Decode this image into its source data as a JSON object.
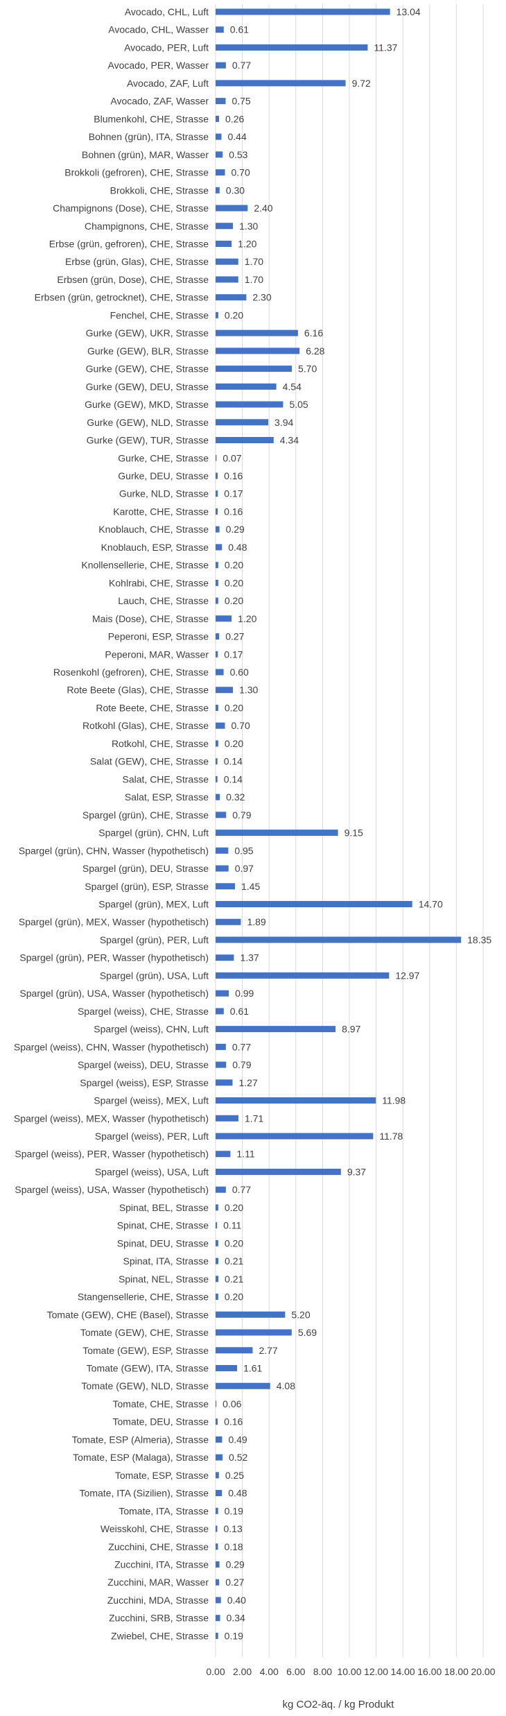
{
  "chart_data": {
    "type": "bar",
    "orientation": "horizontal",
    "xlabel": "kg CO2-äq. / kg Produkt",
    "xlim": [
      0,
      20
    ],
    "xticks": [
      "0.00",
      "2.00",
      "4.00",
      "6.00",
      "8.00",
      "10.00",
      "12.00",
      "14.00",
      "16.00",
      "18.00",
      "20.00"
    ],
    "grid": true,
    "bar_color": "#4472C4",
    "categories": [
      "Avocado, CHL, Luft",
      "Avocado, CHL, Wasser",
      "Avocado, PER, Luft",
      "Avocado, PER, Wasser",
      "Avocado, ZAF, Luft",
      "Avocado, ZAF, Wasser",
      "Blumenkohl, CHE, Strasse",
      "Bohnen (grün), ITA, Strasse",
      "Bohnen (grün), MAR, Wasser",
      "Brokkoli (gefroren), CHE, Strasse",
      "Brokkoli, CHE, Strasse",
      "Champignons (Dose), CHE, Strasse",
      "Champignons, CHE, Strasse",
      "Erbse (grün, gefroren), CHE, Strasse",
      "Erbse (grün, Glas), CHE, Strasse",
      "Erbsen (grün, Dose), CHE, Strasse",
      "Erbsen (grün, getrocknet), CHE, Strasse",
      "Fenchel, CHE, Strasse",
      "Gurke  (GEW), UKR, Strasse",
      "Gurke (GEW), BLR, Strasse",
      "Gurke (GEW), CHE, Strasse",
      "Gurke (GEW), DEU, Strasse",
      "Gurke (GEW), MKD, Strasse",
      "Gurke (GEW), NLD, Strasse",
      "Gurke (GEW), TUR, Strasse",
      "Gurke, CHE, Strasse",
      "Gurke, DEU, Strasse",
      "Gurke, NLD, Strasse",
      "Karotte, CHE, Strasse",
      "Knoblauch, CHE, Strasse",
      "Knoblauch, ESP, Strasse",
      "Knollensellerie, CHE, Strasse",
      "Kohlrabi, CHE, Strasse",
      "Lauch, CHE, Strasse",
      "Mais (Dose), CHE, Strasse",
      "Peperoni, ESP, Strasse",
      "Peperoni, MAR, Wasser",
      "Rosenkohl (gefroren), CHE, Strasse",
      "Rote Beete (Glas), CHE, Strasse",
      "Rote Beete, CHE, Strasse",
      "Rotkohl (Glas), CHE, Strasse",
      "Rotkohl, CHE, Strasse",
      "Salat (GEW), CHE, Strasse",
      "Salat, CHE, Strasse",
      "Salat, ESP, Strasse",
      "Spargel (grün), CHE, Strasse",
      "Spargel (grün), CHN, Luft",
      "Spargel (grün), CHN, Wasser (hypothetisch)",
      "Spargel (grün), DEU, Strasse",
      "Spargel (grün), ESP, Strasse",
      "Spargel (grün), MEX, Luft",
      "Spargel (grün), MEX, Wasser (hypothetisch)",
      "Spargel (grün), PER, Luft",
      "Spargel (grün), PER, Wasser (hypothetisch)",
      "Spargel (grün), USA, Luft",
      "Spargel (grün), USA, Wasser (hypothetisch)",
      "Spargel (weiss), CHE, Strasse",
      "Spargel (weiss), CHN, Luft",
      "Spargel (weiss), CHN, Wasser (hypothetisch)",
      "Spargel (weiss), DEU, Strasse",
      "Spargel (weiss), ESP, Strasse",
      "Spargel (weiss), MEX, Luft",
      "Spargel (weiss), MEX, Wasser (hypothetisch)",
      "Spargel (weiss), PER, Luft",
      "Spargel (weiss), PER, Wasser (hypothetisch)",
      "Spargel (weiss), USA, Luft",
      "Spargel (weiss), USA, Wasser (hypothetisch)",
      "Spinat, BEL, Strasse",
      "Spinat, CHE, Strasse",
      "Spinat, DEU, Strasse",
      "Spinat, ITA, Strasse",
      "Spinat, NEL, Strasse",
      "Stangensellerie, CHE, Strasse",
      "Tomate (GEW), CHE (Basel), Strasse",
      "Tomate (GEW), CHE, Strasse",
      "Tomate (GEW), ESP, Strasse",
      "Tomate (GEW), ITA, Strasse",
      "Tomate (GEW), NLD, Strasse",
      "Tomate, CHE, Strasse",
      "Tomate, DEU, Strasse",
      "Tomate, ESP (Almeria), Strasse",
      "Tomate, ESP (Malaga), Strasse",
      "Tomate, ESP, Strasse",
      "Tomate, ITA (Sizilien), Strasse",
      "Tomate, ITA, Strasse",
      "Weisskohl, CHE, Strasse",
      "Zucchini, CHE, Strasse",
      "Zucchini, ITA, Strasse",
      "Zucchini, MAR, Wasser",
      "Zucchini, MDA, Strasse",
      "Zucchini, SRB, Strasse",
      "Zwiebel, CHE, Strasse"
    ],
    "values": [
      13.04,
      0.61,
      11.37,
      0.77,
      9.72,
      0.75,
      0.26,
      0.44,
      0.53,
      0.7,
      0.3,
      2.4,
      1.3,
      1.2,
      1.7,
      1.7,
      2.3,
      0.2,
      6.16,
      6.28,
      5.7,
      4.54,
      5.05,
      3.94,
      4.34,
      0.07,
      0.16,
      0.17,
      0.16,
      0.29,
      0.48,
      0.2,
      0.2,
      0.2,
      1.2,
      0.27,
      0.17,
      0.6,
      1.3,
      0.2,
      0.7,
      0.2,
      0.14,
      0.14,
      0.32,
      0.79,
      9.15,
      0.95,
      0.97,
      1.45,
      14.7,
      1.89,
      18.35,
      1.37,
      12.97,
      0.99,
      0.61,
      8.97,
      0.77,
      0.79,
      1.27,
      11.98,
      1.71,
      11.78,
      1.11,
      9.37,
      0.77,
      0.2,
      0.11,
      0.2,
      0.21,
      0.21,
      0.2,
      5.2,
      5.69,
      2.77,
      1.61,
      4.08,
      0.06,
      0.16,
      0.49,
      0.52,
      0.25,
      0.48,
      0.19,
      0.13,
      0.18,
      0.29,
      0.27,
      0.4,
      0.34,
      0.19
    ],
    "value_labels": [
      "13.04",
      "0.61",
      "11.37",
      "0.77",
      "9.72",
      "0.75",
      "0.26",
      "0.44",
      "0.53",
      "0.70",
      "0.30",
      "2.40",
      "1.30",
      "1.20",
      "1.70",
      "1.70",
      "2.30",
      "0.20",
      "6.16",
      "6.28",
      "5.70",
      "4.54",
      "5.05",
      "3.94",
      "4.34",
      "0.07",
      "0.16",
      "0.17",
      "0.16",
      "0.29",
      "0.48",
      "0.20",
      "0.20",
      "0.20",
      "1.20",
      "0.27",
      "0.17",
      "0.60",
      "1.30",
      "0.20",
      "0.70",
      "0.20",
      "0.14",
      "0.14",
      "0.32",
      "0.79",
      "9.15",
      "0.95",
      "0.97",
      "1.45",
      "14.70",
      "1.89",
      "18.35",
      "1.37",
      "12.97",
      "0.99",
      "0.61",
      "8.97",
      "0.77",
      "0.79",
      "1.27",
      "11.98",
      "1.71",
      "11.78",
      "1.11",
      "9.37",
      "0.77",
      "0.20",
      "0.11",
      "0.20",
      "0.21",
      "0.21",
      "0.20",
      "5.20",
      "5.69",
      "2.77",
      "1.61",
      "4.08",
      "0.06",
      "0.16",
      "0.49",
      "0.52",
      "0.25",
      "0.48",
      "0.19",
      "0.13",
      "0.18",
      "0.29",
      "0.27",
      "0.40",
      "0.34",
      "0.19"
    ]
  }
}
